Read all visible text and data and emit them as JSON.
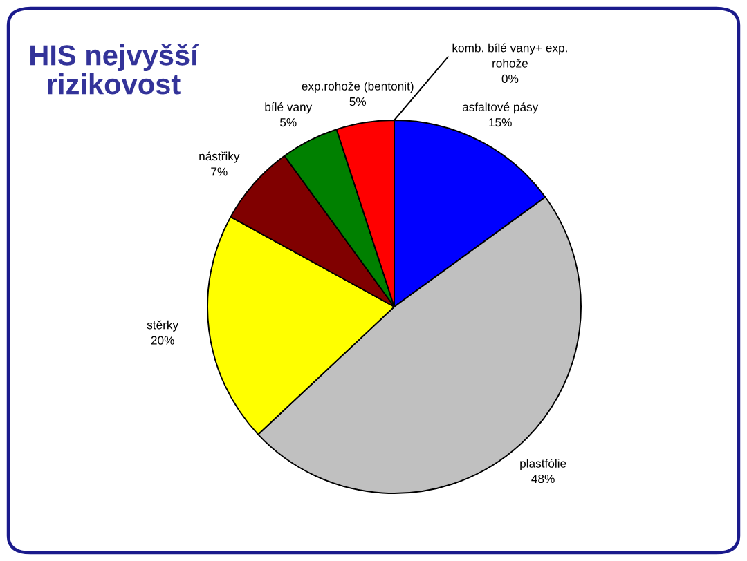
{
  "chart_data": {
    "type": "pie",
    "title": "HIS nejvyšší rizikovost",
    "categories": [
      "asfaltové pásy",
      "plastfólie",
      "stěrky",
      "nástřiky",
      "bílé vany",
      "exp.rohože (bentonit)",
      "komb. bílé vany+ exp. rohože"
    ],
    "values": [
      15,
      48,
      20,
      7,
      5,
      5,
      0
    ],
    "value_labels": [
      "15%",
      "48%",
      "20%",
      "7%",
      "5%",
      "5%",
      "0%"
    ],
    "colors": [
      "#0000ff",
      "#c0c0c0",
      "#ffff00",
      "#800000",
      "#008000",
      "#ff0000",
      "#ffffff"
    ]
  }
}
